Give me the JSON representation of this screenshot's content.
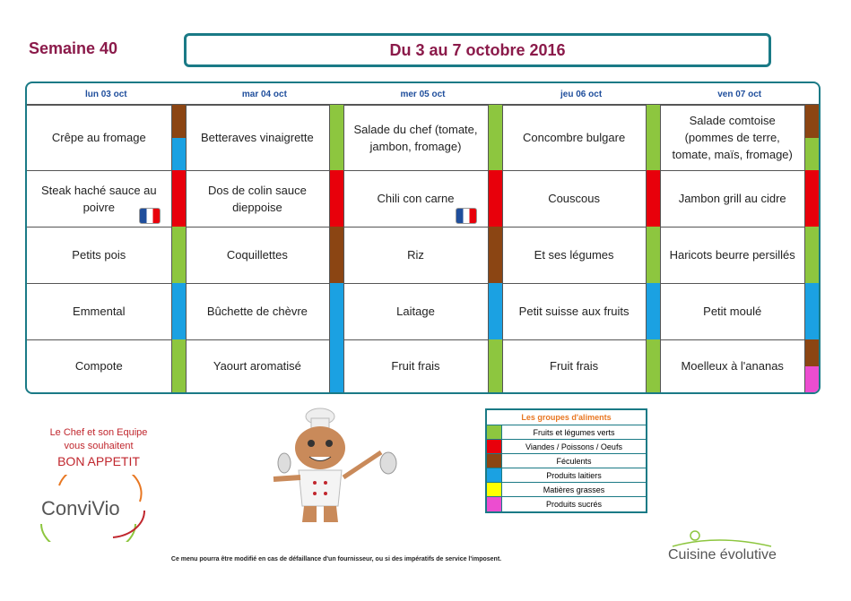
{
  "header": {
    "week": "Semaine 40",
    "period": "Du 3 au 7 octobre 2016"
  },
  "menu": {
    "days": [
      "lun 03 oct",
      "mar 04 oct",
      "mer 05 oct",
      "jeu 06 oct",
      "ven 07 oct"
    ],
    "rows": [
      [
        {
          "text": "Crêpe au fromage",
          "colors": [
            "#8b4513",
            "#1ba1e2"
          ]
        },
        {
          "text": "Betteraves vinaigrette",
          "colors": [
            "#8dc63f"
          ]
        },
        {
          "text": "Salade du chef (tomate, jambon, fromage)",
          "colors": [
            "#8dc63f"
          ]
        },
        {
          "text": "Concombre bulgare",
          "colors": [
            "#8dc63f"
          ]
        },
        {
          "text": "Salade comtoise (pommes de terre, tomate, maïs, fromage)",
          "colors": [
            "#8b4513",
            "#8dc63f"
          ]
        }
      ],
      [
        {
          "text": "Steak haché sauce au poivre",
          "colors": [
            "#e8000b"
          ]
        },
        {
          "text": "Dos de colin sauce dieppoise",
          "colors": [
            "#e8000b"
          ]
        },
        {
          "text": "Chili con carne",
          "colors": [
            "#e8000b"
          ]
        },
        {
          "text": "Couscous",
          "colors": [
            "#e8000b"
          ]
        },
        {
          "text": "Jambon grill au cidre",
          "colors": [
            "#e8000b"
          ]
        }
      ],
      [
        {
          "text": "Petits pois",
          "colors": [
            "#8dc63f"
          ]
        },
        {
          "text": "Coquillettes",
          "colors": [
            "#8b4513"
          ]
        },
        {
          "text": "Riz",
          "colors": [
            "#8b4513"
          ]
        },
        {
          "text": "Et ses légumes",
          "colors": [
            "#8dc63f"
          ]
        },
        {
          "text": "Haricots beurre persillés",
          "colors": [
            "#8dc63f"
          ]
        }
      ],
      [
        {
          "text": "Emmental",
          "colors": [
            "#1ba1e2"
          ]
        },
        {
          "text": "Bûchette de chèvre",
          "colors": [
            "#1ba1e2"
          ]
        },
        {
          "text": "Laitage",
          "colors": [
            "#1ba1e2"
          ]
        },
        {
          "text": "Petit suisse aux fruits",
          "colors": [
            "#1ba1e2"
          ]
        },
        {
          "text": "Petit moulé",
          "colors": [
            "#1ba1e2"
          ]
        }
      ],
      [
        {
          "text": "Compote",
          "colors": [
            "#8dc63f"
          ]
        },
        {
          "text": "Yaourt aromatisé",
          "colors": [
            "#1ba1e2"
          ]
        },
        {
          "text": "Fruit frais",
          "colors": [
            "#8dc63f"
          ]
        },
        {
          "text": "Fruit frais",
          "colors": [
            "#8dc63f"
          ]
        },
        {
          "text": "Moelleux à l'ananas",
          "colors": [
            "#8b4513",
            "#ec4dd0"
          ]
        }
      ]
    ]
  },
  "legend": {
    "title": "Les groupes d'aliments",
    "items": [
      {
        "label": "Fruits et légumes verts",
        "color": "#8dc63f"
      },
      {
        "label": "Viandes / Poissons / Oeufs",
        "color": "#e8000b"
      },
      {
        "label": "Féculents",
        "color": "#8b4513"
      },
      {
        "label": "Produits laitiers",
        "color": "#1ba1e2"
      },
      {
        "label": "Matières grasses",
        "color": "#ffff00"
      },
      {
        "label": "Produits sucrés",
        "color": "#ec4dd0"
      }
    ]
  },
  "greeting": {
    "line1": "Le Chef et son Equipe",
    "line2": "vous souhaitent",
    "line3": "BON APPETIT"
  },
  "logos": {
    "left": "ConviVio",
    "right": "Cuisine évolutive"
  },
  "note": "Ce menu pourra être modifié en cas de défaillance d'un fournisseur, ou si des impératifs de service l'imposent."
}
